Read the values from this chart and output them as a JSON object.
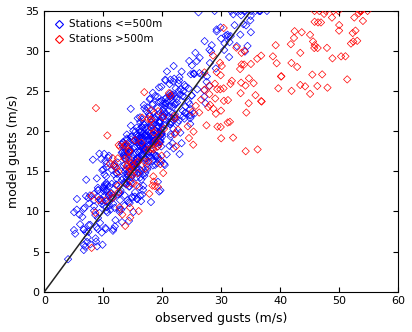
{
  "xlabel": "observed gusts (m/s)",
  "ylabel": "model gusts (m/s)",
  "xlim": [
    0,
    60
  ],
  "ylim": [
    0,
    35
  ],
  "xticks": [
    0,
    10,
    20,
    30,
    40,
    50,
    60
  ],
  "yticks": [
    0,
    5,
    10,
    15,
    20,
    25,
    30,
    35
  ],
  "legend_labels": [
    "Stations <=500m",
    "Stations >500m"
  ],
  "marker": "D",
  "marker_size": 14,
  "line_color": "#222222",
  "background_color": "white",
  "seed_blue": 7,
  "seed_red": 13,
  "n_blue": 550,
  "n_red": 200,
  "xlabel_fontsize": 9,
  "ylabel_fontsize": 9,
  "tick_fontsize": 8,
  "legend_fontsize": 7.5
}
